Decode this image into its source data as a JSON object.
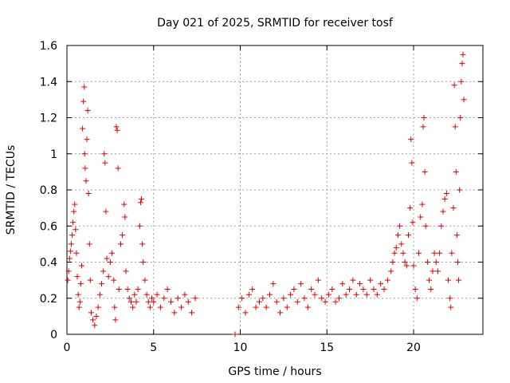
{
  "chart_data": {
    "type": "scatter",
    "title": "Day 021 of 2025, SRMTID for receiver tosf",
    "xlabel": "GPS time / hours",
    "ylabel": "SRMTID / TECUs",
    "xlim": [
      0,
      24
    ],
    "ylim": [
      0,
      1.6
    ],
    "xticks": [
      {
        "value": 0,
        "label": "0"
      },
      {
        "value": 5,
        "label": "5"
      },
      {
        "value": 10,
        "label": "10"
      },
      {
        "value": 15,
        "label": "15"
      },
      {
        "value": 20,
        "label": "20"
      }
    ],
    "yticks": [
      {
        "value": 0,
        "label": "0"
      },
      {
        "value": 0.2,
        "label": "0.2"
      },
      {
        "value": 0.4,
        "label": "0.4"
      },
      {
        "value": 0.6,
        "label": "0.6"
      },
      {
        "value": 0.8,
        "label": "0.8"
      },
      {
        "value": 1.0,
        "label": "1"
      },
      {
        "value": 1.2,
        "label": "1.2"
      },
      {
        "value": 1.4,
        "label": "1.4"
      },
      {
        "value": 1.6,
        "label": "1.6"
      }
    ],
    "grid": true,
    "marker": "+",
    "color": "#e00000",
    "series": [
      {
        "name": "SRMTID",
        "points": [
          [
            0.05,
            0.3
          ],
          [
            0.1,
            0.35
          ],
          [
            0.15,
            0.42
          ],
          [
            0.2,
            0.46
          ],
          [
            0.25,
            0.5
          ],
          [
            0.3,
            0.55
          ],
          [
            0.35,
            0.62
          ],
          [
            0.4,
            0.68
          ],
          [
            0.45,
            0.72
          ],
          [
            0.5,
            0.58
          ],
          [
            0.55,
            0.45
          ],
          [
            0.6,
            0.32
          ],
          [
            0.65,
            0.22
          ],
          [
            0.7,
            0.15
          ],
          [
            0.75,
            0.18
          ],
          [
            0.8,
            0.28
          ],
          [
            0.85,
            0.38
          ],
          [
            0.9,
            1.14
          ],
          [
            0.95,
            1.29
          ],
          [
            1.0,
            1.37
          ],
          [
            1.02,
            1.0
          ],
          [
            1.05,
            0.92
          ],
          [
            1.1,
            0.85
          ],
          [
            1.15,
            1.08
          ],
          [
            1.2,
            1.24
          ],
          [
            1.25,
            0.78
          ],
          [
            1.3,
            0.5
          ],
          [
            1.35,
            0.3
          ],
          [
            1.4,
            0.12
          ],
          [
            1.5,
            0.08
          ],
          [
            1.6,
            0.05
          ],
          [
            1.7,
            0.1
          ],
          [
            1.8,
            0.15
          ],
          [
            1.9,
            0.22
          ],
          [
            2.0,
            0.28
          ],
          [
            2.1,
            0.35
          ],
          [
            2.15,
            1.0
          ],
          [
            2.2,
            0.95
          ],
          [
            2.25,
            0.68
          ],
          [
            2.3,
            0.42
          ],
          [
            2.4,
            0.32
          ],
          [
            2.5,
            0.4
          ],
          [
            2.6,
            0.45
          ],
          [
            2.7,
            0.3
          ],
          [
            2.75,
            0.15
          ],
          [
            2.8,
            0.08
          ],
          [
            2.85,
            1.15
          ],
          [
            2.9,
            1.13
          ],
          [
            2.95,
            0.92
          ],
          [
            3.0,
            0.25
          ],
          [
            3.1,
            0.5
          ],
          [
            3.2,
            0.55
          ],
          [
            3.3,
            0.72
          ],
          [
            3.35,
            0.65
          ],
          [
            3.4,
            0.35
          ],
          [
            3.5,
            0.25
          ],
          [
            3.6,
            0.2
          ],
          [
            3.7,
            0.18
          ],
          [
            3.8,
            0.15
          ],
          [
            3.9,
            0.22
          ],
          [
            4.0,
            0.18
          ],
          [
            4.1,
            0.25
          ],
          [
            4.2,
            0.6
          ],
          [
            4.25,
            0.73
          ],
          [
            4.3,
            0.75
          ],
          [
            4.35,
            0.5
          ],
          [
            4.4,
            0.4
          ],
          [
            4.5,
            0.3
          ],
          [
            4.6,
            0.22
          ],
          [
            4.7,
            0.18
          ],
          [
            4.8,
            0.15
          ],
          [
            4.9,
            0.2
          ],
          [
            5.0,
            0.18
          ],
          [
            5.2,
            0.22
          ],
          [
            5.4,
            0.15
          ],
          [
            5.6,
            0.2
          ],
          [
            5.8,
            0.25
          ],
          [
            6.0,
            0.18
          ],
          [
            6.2,
            0.12
          ],
          [
            6.4,
            0.2
          ],
          [
            6.6,
            0.15
          ],
          [
            6.8,
            0.22
          ],
          [
            7.0,
            0.18
          ],
          [
            7.2,
            0.12
          ],
          [
            7.4,
            0.2
          ],
          [
            9.7,
            0.0
          ],
          [
            9.9,
            0.15
          ],
          [
            10.1,
            0.2
          ],
          [
            10.3,
            0.12
          ],
          [
            10.5,
            0.22
          ],
          [
            10.7,
            0.25
          ],
          [
            10.9,
            0.15
          ],
          [
            11.1,
            0.18
          ],
          [
            11.3,
            0.2
          ],
          [
            11.5,
            0.15
          ],
          [
            11.7,
            0.22
          ],
          [
            11.9,
            0.28
          ],
          [
            12.1,
            0.18
          ],
          [
            12.3,
            0.12
          ],
          [
            12.5,
            0.2
          ],
          [
            12.7,
            0.15
          ],
          [
            12.9,
            0.22
          ],
          [
            13.1,
            0.25
          ],
          [
            13.3,
            0.18
          ],
          [
            13.5,
            0.28
          ],
          [
            13.7,
            0.2
          ],
          [
            13.9,
            0.15
          ],
          [
            14.1,
            0.25
          ],
          [
            14.3,
            0.22
          ],
          [
            14.5,
            0.3
          ],
          [
            14.7,
            0.2
          ],
          [
            14.9,
            0.18
          ],
          [
            15.1,
            0.22
          ],
          [
            15.3,
            0.25
          ],
          [
            15.5,
            0.18
          ],
          [
            15.7,
            0.2
          ],
          [
            15.9,
            0.28
          ],
          [
            16.1,
            0.22
          ],
          [
            16.3,
            0.25
          ],
          [
            16.5,
            0.3
          ],
          [
            16.7,
            0.22
          ],
          [
            16.9,
            0.28
          ],
          [
            17.1,
            0.25
          ],
          [
            17.3,
            0.22
          ],
          [
            17.5,
            0.3
          ],
          [
            17.7,
            0.25
          ],
          [
            17.9,
            0.22
          ],
          [
            18.1,
            0.28
          ],
          [
            18.3,
            0.25
          ],
          [
            18.5,
            0.3
          ],
          [
            18.7,
            0.35
          ],
          [
            18.8,
            0.4
          ],
          [
            18.9,
            0.45
          ],
          [
            19.0,
            0.48
          ],
          [
            19.1,
            0.55
          ],
          [
            19.2,
            0.6
          ],
          [
            19.3,
            0.5
          ],
          [
            19.4,
            0.45
          ],
          [
            19.5,
            0.4
          ],
          [
            19.6,
            0.38
          ],
          [
            19.7,
            0.55
          ],
          [
            19.8,
            0.7
          ],
          [
            19.85,
            1.08
          ],
          [
            19.9,
            0.95
          ],
          [
            19.95,
            0.62
          ],
          [
            20.0,
            0.38
          ],
          [
            20.1,
            0.25
          ],
          [
            20.2,
            0.2
          ],
          [
            20.3,
            0.45
          ],
          [
            20.4,
            0.65
          ],
          [
            20.5,
            0.72
          ],
          [
            20.55,
            1.15
          ],
          [
            20.6,
            1.2
          ],
          [
            20.65,
            0.9
          ],
          [
            20.7,
            0.6
          ],
          [
            20.8,
            0.4
          ],
          [
            20.9,
            0.3
          ],
          [
            21.0,
            0.25
          ],
          [
            21.1,
            0.35
          ],
          [
            21.2,
            0.45
          ],
          [
            21.3,
            0.4
          ],
          [
            21.4,
            0.35
          ],
          [
            21.5,
            0.45
          ],
          [
            21.6,
            0.6
          ],
          [
            21.7,
            0.68
          ],
          [
            21.8,
            0.75
          ],
          [
            21.9,
            0.78
          ],
          [
            22.0,
            0.3
          ],
          [
            22.1,
            0.2
          ],
          [
            22.15,
            0.15
          ],
          [
            22.2,
            0.45
          ],
          [
            22.3,
            0.7
          ],
          [
            22.35,
            1.38
          ],
          [
            22.4,
            1.15
          ],
          [
            22.45,
            0.9
          ],
          [
            22.5,
            0.55
          ],
          [
            22.55,
            0.4
          ],
          [
            22.6,
            0.3
          ],
          [
            22.65,
            0.8
          ],
          [
            22.7,
            1.2
          ],
          [
            22.75,
            1.4
          ],
          [
            22.8,
            1.5
          ],
          [
            22.85,
            1.55
          ],
          [
            22.9,
            1.3
          ]
        ]
      }
    ]
  }
}
